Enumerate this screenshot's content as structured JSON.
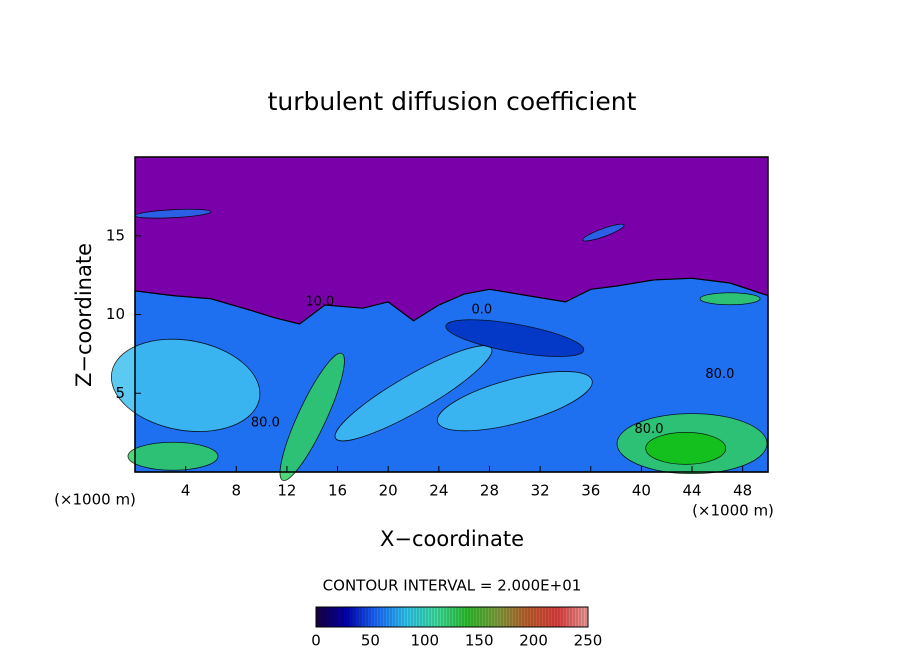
{
  "chart_data": {
    "type": "contour",
    "title": "turbulent diffusion coefficient",
    "xlabel": "X−coordinate",
    "ylabel": "Z−coordinate",
    "x_unit_label": "(×1000 m)",
    "xlim": [
      0,
      50
    ],
    "xticks": [
      4,
      8,
      12,
      16,
      20,
      24,
      28,
      32,
      36,
      40,
      44,
      48
    ],
    "ylim": [
      0,
      20
    ],
    "yticks": [
      5,
      10,
      15
    ],
    "contour_interval_label": "CONTOUR INTERVAL = 2.000E+01",
    "annotations": [
      {
        "text": "10.0",
        "x": 14.6,
        "y": 10.8
      },
      {
        "text": "80.0",
        "x": 10.3,
        "y": 3.1
      },
      {
        "text": "0.0",
        "x": 27.4,
        "y": 10.3
      },
      {
        "text": "80.0",
        "x": 40.6,
        "y": 2.7
      },
      {
        "text": "80.0",
        "x": 46.2,
        "y": 6.2
      }
    ],
    "colorbar": {
      "lim": [
        0,
        250
      ],
      "ticks": [
        0,
        50,
        100,
        150,
        200,
        250
      ],
      "colors": [
        "#1a0040",
        "#0000b0",
        "#1e6cff",
        "#30c8f0",
        "#40e0a0",
        "#30c030",
        "#80a040",
        "#c06030",
        "#e04040",
        "#f0a0a0"
      ]
    },
    "colors": {
      "top": "#7a00aa",
      "field": "#1e70f0",
      "light": "#40c0f0",
      "high": "#30d060",
      "peak": "#10c010"
    }
  }
}
